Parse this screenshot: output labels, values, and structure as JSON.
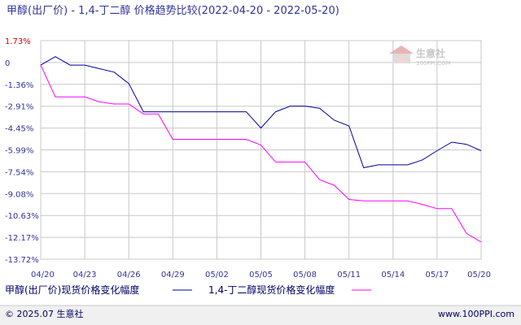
{
  "colors": {
    "series1": "#000099",
    "series2": "#ff00ff",
    "grid": "#c8c8c8",
    "text": "#333399",
    "top_tick": "#cc0000",
    "footer_band": "#f0f0f0"
  },
  "chart_data": {
    "type": "line",
    "title": "甲醇(出厂价) - 1,4-丁二醇 价格趋势比较(2022-04-20 - 2022-05-20)",
    "x": [
      "04/20",
      "04/21",
      "04/22",
      "04/23",
      "04/24",
      "04/25",
      "04/26",
      "04/27",
      "04/28",
      "04/29",
      "04/30",
      "05/01",
      "05/02",
      "05/03",
      "05/04",
      "05/05",
      "05/06",
      "05/07",
      "05/08",
      "05/09",
      "05/10",
      "05/11",
      "05/12",
      "05/13",
      "05/14",
      "05/15",
      "05/16",
      "05/17",
      "05/18",
      "05/19",
      "05/20"
    ],
    "x_tick_labels": [
      "04/20",
      "04/23",
      "04/26",
      "04/29",
      "05/02",
      "05/05",
      "05/08",
      "05/11",
      "05/14",
      "05/17",
      "05/20"
    ],
    "y_tick_labels": [
      "1.73%",
      "0",
      "-1.36%",
      "-2.91%",
      "-4.45%",
      "-5.99%",
      "-7.54%",
      "-9.08%",
      "-10.63%",
      "-12.17%",
      "-13.72%"
    ],
    "ylim": [
      -13.72,
      1.73
    ],
    "grid": true,
    "legend_position": "bottom-left",
    "series": [
      {
        "name": "甲醇(出厂价)现货价格变化幅度",
        "values": [
          0,
          0.6,
          0,
          0,
          -0.25,
          -0.5,
          -1.3,
          -3.3,
          -3.3,
          -3.3,
          -3.3,
          -3.3,
          -3.3,
          -3.3,
          -3.3,
          -4.45,
          -3.3,
          -2.9,
          -2.9,
          -3.05,
          -3.9,
          -4.3,
          -7.25,
          -7.05,
          -7.05,
          -7.05,
          -6.7,
          -6.05,
          -5.45,
          -5.6,
          -6.05
        ]
      },
      {
        "name": "1,4-丁二醇现货价格变化幅度",
        "values": [
          0,
          -2.25,
          -2.25,
          -2.25,
          -2.6,
          -2.75,
          -2.75,
          -3.45,
          -3.45,
          -5.25,
          -5.25,
          -5.25,
          -5.25,
          -5.25,
          -5.25,
          -5.65,
          -6.85,
          -6.85,
          -6.85,
          -8.1,
          -8.5,
          -9.5,
          -9.6,
          -9.6,
          -9.6,
          -9.6,
          -9.85,
          -10.15,
          -10.15,
          -11.9,
          -12.5
        ]
      }
    ]
  },
  "legend": {
    "items": [
      {
        "label": "甲醇(出厂价)现货价格变化幅度"
      },
      {
        "label": "1,4-丁二醇现货价格变化幅度"
      }
    ]
  },
  "watermark": {
    "text": "生意社",
    "url": "100PPI.COM"
  },
  "footer": {
    "left": "© 2025.07 生意社",
    "right": "www.100PPI.com"
  }
}
